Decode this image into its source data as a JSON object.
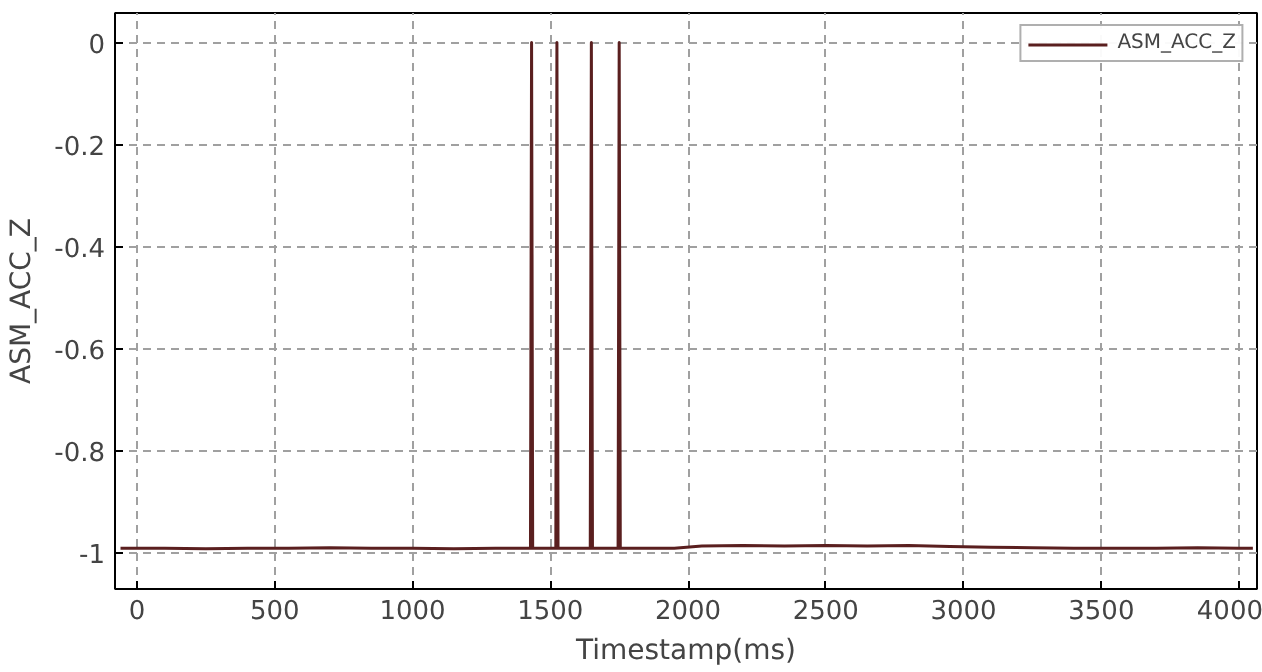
{
  "chart_data": {
    "type": "line",
    "xlabel": "Timestamp(ms)",
    "ylabel": "ASM_ACC_Z",
    "xlim": [
      -80,
      4065
    ],
    "ylim": [
      -1.07,
      0.058
    ],
    "xticks": [
      0,
      500,
      1000,
      1500,
      2000,
      2500,
      3000,
      3500,
      4000
    ],
    "yticks": [
      0,
      -0.2,
      -0.4,
      -0.6,
      -0.8,
      -1
    ],
    "grid": true,
    "legend": "top right",
    "line_style": "solid",
    "marker": "none",
    "series": [
      {
        "name": "ASM_ACC_Z",
        "color": "#5a1f1f",
        "x": [
          -60,
          100,
          250,
          400,
          550,
          700,
          850,
          1000,
          1150,
          1300,
          1428,
          1432,
          1436,
          1520,
          1524,
          1528,
          1645,
          1649,
          1653,
          1746,
          1750,
          1754,
          1850,
          1950,
          2050,
          2200,
          2350,
          2500,
          2650,
          2800,
          2950,
          3100,
          3250,
          3400,
          3550,
          3700,
          3850,
          4000,
          4050
        ],
        "values": [
          -0.99,
          -0.99,
          -0.991,
          -0.99,
          -0.99,
          -0.989,
          -0.99,
          -0.99,
          -0.991,
          -0.99,
          -0.99,
          0,
          -0.99,
          -0.99,
          0,
          -0.99,
          -0.99,
          0,
          -0.99,
          -0.99,
          0,
          -0.99,
          -0.99,
          -0.99,
          -0.986,
          -0.985,
          -0.986,
          -0.985,
          -0.986,
          -0.985,
          -0.987,
          -0.988,
          -0.989,
          -0.99,
          -0.99,
          -0.99,
          -0.989,
          -0.99,
          -0.99
        ]
      }
    ]
  }
}
